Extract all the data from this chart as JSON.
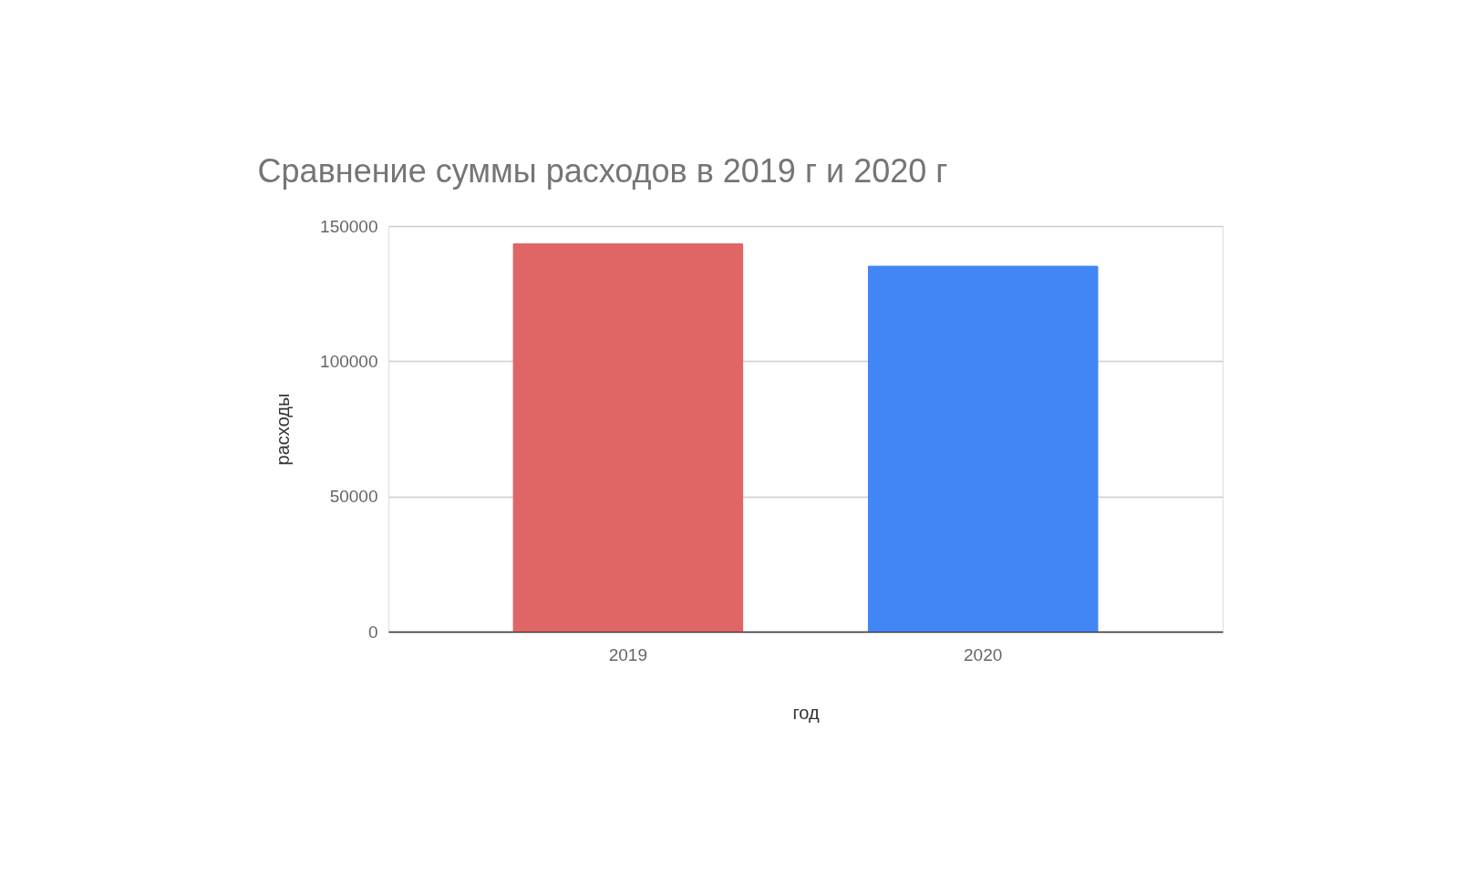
{
  "chart_data": {
    "type": "bar",
    "title": "Сравнение суммы расходов в 2019 г и 2020 г",
    "xlabel": "год",
    "ylabel": "расходы",
    "categories": [
      "2019",
      "2020"
    ],
    "values": [
      143700,
      135400
    ],
    "colors": [
      "#e06666",
      "#4285f4"
    ],
    "ylim": [
      0,
      150000
    ],
    "yticks": [
      0,
      50000,
      100000,
      150000
    ],
    "grid": "y"
  }
}
